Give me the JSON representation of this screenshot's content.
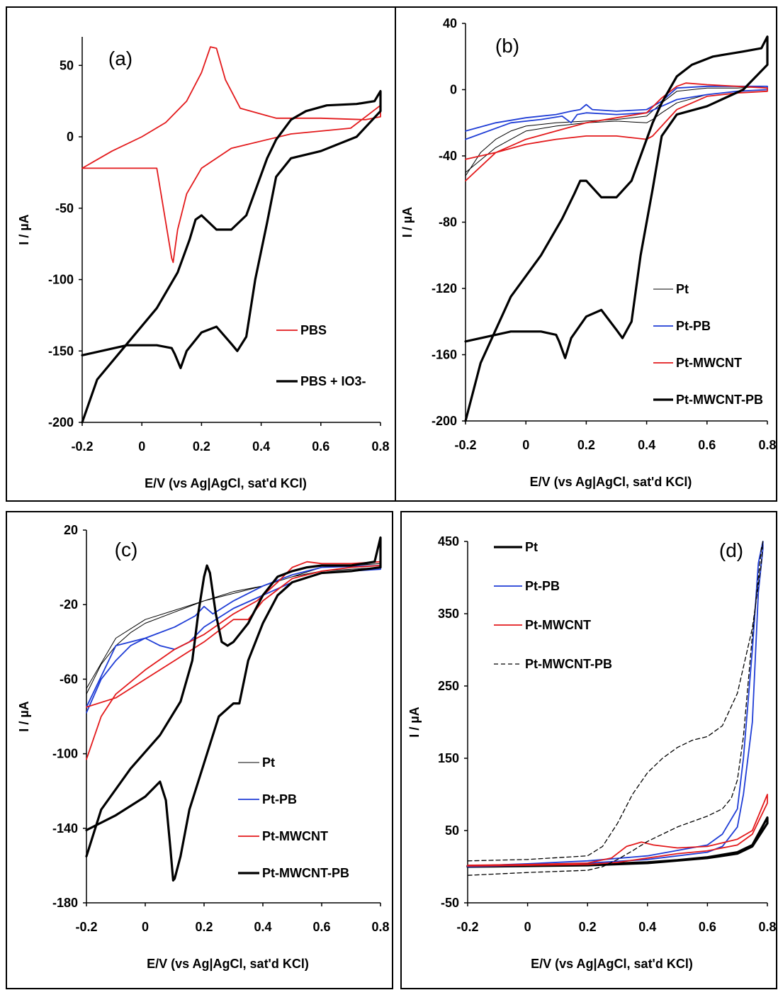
{
  "chart_data": [
    {
      "panel": "(a)",
      "type": "line",
      "xlabel": "E/V (vs Ag|AgCl, sat'd KCl)",
      "ylabel": "I / µA",
      "xlim": [
        -0.2,
        0.8
      ],
      "ylim": [
        -200,
        70
      ],
      "xticks": [
        "-0.2",
        "0",
        "0.2",
        "0.4",
        "0.6",
        "0.8"
      ],
      "yticks": [
        "50",
        "0",
        "-50",
        "-100",
        "-150",
        "-200"
      ],
      "ytick_values": [
        50,
        0,
        -50,
        -100,
        -150,
        -200
      ],
      "xtick_values": [
        -0.2,
        0,
        0.2,
        0.4,
        0.6,
        0.8
      ],
      "legend": "right-middle",
      "series": [
        {
          "name": "PBS",
          "color": "#e31a1c",
          "width": 1.8,
          "dash": "",
          "x": [
            -0.2,
            -0.1,
            0,
            0.08,
            0.15,
            0.2,
            0.23,
            0.25,
            0.28,
            0.33,
            0.45,
            0.6,
            0.75,
            0.8,
            0.8,
            0.7,
            0.5,
            0.3,
            0.2,
            0.15,
            0.12,
            0.11,
            0.105,
            0.1,
            0.05,
            -0.1,
            -0.2
          ],
          "y": [
            -22,
            -10,
            0,
            10,
            25,
            45,
            63,
            62,
            40,
            20,
            13,
            13,
            12,
            14,
            22,
            6,
            2,
            -8,
            -22,
            -40,
            -65,
            -80,
            -88,
            -85,
            -22,
            -22,
            -22
          ]
        },
        {
          "name": "PBS + IO3-",
          "color": "#000000",
          "width": 3.2,
          "dash": "",
          "x": [
            -0.2,
            -0.15,
            -0.05,
            0.05,
            0.12,
            0.16,
            0.18,
            0.2,
            0.25,
            0.3,
            0.35,
            0.42,
            0.45,
            0.5,
            0.55,
            0.62,
            0.72,
            0.78,
            0.8,
            0.8,
            0.72,
            0.6,
            0.5,
            0.45,
            0.42,
            0.38,
            0.35,
            0.32,
            0.3,
            0.25,
            0.2,
            0.15,
            0.13,
            0.11,
            0.1,
            0.05,
            -0.05,
            -0.2
          ],
          "y": [
            -200,
            -170,
            -145,
            -120,
            -95,
            -72,
            -58,
            -55,
            -65,
            -65,
            -55,
            -15,
            -2,
            12,
            18,
            22,
            23,
            25,
            32,
            18,
            0,
            -10,
            -15,
            -28,
            -60,
            -100,
            -140,
            -150,
            -145,
            -133,
            -137,
            -150,
            -162,
            -152,
            -148,
            -146,
            -146,
            -153
          ]
        }
      ]
    },
    {
      "panel": "(b)",
      "type": "line",
      "xlabel": "E/V (vs Ag|AgCl, sat'd KCl)",
      "ylabel": "I / µA",
      "xlim": [
        -0.2,
        0.8
      ],
      "ylim": [
        -200,
        40
      ],
      "xticks": [
        "-0.2",
        "0",
        "0.2",
        "0.4",
        "0.6",
        "0.8"
      ],
      "yticks": [
        "40",
        "0",
        "-40",
        "-80",
        "-120",
        "-160",
        "-200"
      ],
      "ytick_values": [
        40,
        0,
        -40,
        -80,
        -120,
        -160,
        -200
      ],
      "xtick_values": [
        -0.2,
        0,
        0.2,
        0.4,
        0.6,
        0.8
      ],
      "legend": "bottom-right",
      "series": [
        {
          "name": "Pt",
          "color": "#000000",
          "width": 1.0,
          "dash": "",
          "x": [
            -0.2,
            -0.15,
            -0.1,
            -0.05,
            0,
            0.1,
            0.2,
            0.3,
            0.4,
            0.45,
            0.5,
            0.6,
            0.7,
            0.8,
            0.8,
            0.7,
            0.6,
            0.5,
            0.45,
            0.42,
            0.4,
            0.3,
            0.2,
            0.1,
            0,
            -0.1,
            -0.2
          ],
          "y": [
            -52,
            -38,
            -30,
            -25,
            -22,
            -20,
            -19,
            -18,
            -16,
            -8,
            -1,
            1,
            1,
            2,
            0,
            -1,
            -3,
            -8,
            -14,
            -18,
            -20,
            -19,
            -20,
            -22,
            -25,
            -35,
            -50
          ]
        },
        {
          "name": "Pt-PB",
          "color": "#1f3dd6",
          "width": 1.8,
          "dash": "",
          "x": [
            -0.2,
            -0.1,
            0,
            0.1,
            0.15,
            0.18,
            0.2,
            0.22,
            0.3,
            0.4,
            0.45,
            0.5,
            0.6,
            0.7,
            0.8,
            0.8,
            0.7,
            0.6,
            0.5,
            0.45,
            0.4,
            0.3,
            0.2,
            0.17,
            0.15,
            0.12,
            0.05,
            -0.05,
            -0.2
          ],
          "y": [
            -25,
            -20,
            -17,
            -15,
            -13,
            -12,
            -9,
            -12,
            -13,
            -12,
            -7,
            1,
            2,
            2,
            2,
            0,
            -1,
            -3,
            -6,
            -10,
            -14,
            -15,
            -14,
            -15,
            -20,
            -16,
            -18,
            -20,
            -30
          ]
        },
        {
          "name": "Pt-MWCNT",
          "color": "#e31a1c",
          "width": 1.8,
          "dash": "",
          "x": [
            -0.2,
            -0.1,
            0,
            0.1,
            0.2,
            0.3,
            0.4,
            0.45,
            0.5,
            0.53,
            0.6,
            0.7,
            0.8,
            0.8,
            0.7,
            0.6,
            0.5,
            0.45,
            0.42,
            0.4,
            0.3,
            0.2,
            0.1,
            0,
            -0.1,
            -0.2
          ],
          "y": [
            -55,
            -38,
            -30,
            -25,
            -20,
            -17,
            -14,
            -5,
            2,
            4,
            3,
            2,
            1,
            -1,
            -2,
            -4,
            -12,
            -22,
            -28,
            -30,
            -28,
            -28,
            -30,
            -33,
            -38,
            -42
          ]
        },
        {
          "name": "Pt-MWCNT-PB",
          "color": "#000000",
          "width": 3.2,
          "dash": "",
          "x": [
            -0.2,
            -0.15,
            -0.05,
            0.05,
            0.12,
            0.16,
            0.18,
            0.2,
            0.25,
            0.3,
            0.35,
            0.42,
            0.45,
            0.5,
            0.55,
            0.62,
            0.72,
            0.78,
            0.8,
            0.8,
            0.72,
            0.6,
            0.5,
            0.45,
            0.42,
            0.38,
            0.35,
            0.32,
            0.3,
            0.25,
            0.2,
            0.15,
            0.13,
            0.11,
            0.1,
            0.05,
            -0.05,
            -0.2
          ],
          "y": [
            -200,
            -165,
            -125,
            -100,
            -78,
            -63,
            -55,
            -55,
            -65,
            -65,
            -55,
            -20,
            -8,
            8,
            15,
            20,
            23,
            25,
            32,
            15,
            0,
            -10,
            -15,
            -28,
            -60,
            -100,
            -140,
            -150,
            -145,
            -133,
            -137,
            -150,
            -162,
            -152,
            -148,
            -146,
            -146,
            -152
          ]
        }
      ]
    },
    {
      "panel": "(c)",
      "type": "line",
      "xlabel": "E/V (vs Ag|AgCl, sat'd KCl)",
      "ylabel": "I / µA",
      "xlim": [
        -0.2,
        0.8
      ],
      "ylim": [
        -180,
        20
      ],
      "xticks": [
        "-0.2",
        "0",
        "0.2",
        "0.4",
        "0.6",
        "0.8"
      ],
      "yticks": [
        "20",
        "-20",
        "-60",
        "-100",
        "-140",
        "-180"
      ],
      "ytick_values": [
        20,
        -20,
        -60,
        -100,
        -140,
        -180
      ],
      "xtick_values": [
        -0.2,
        0,
        0.2,
        0.4,
        0.6,
        0.8
      ],
      "legend": "bottom-right",
      "series": [
        {
          "name": "Pt",
          "color": "#000000",
          "width": 1.0,
          "dash": "",
          "x": [
            -0.2,
            -0.15,
            -0.1,
            -0.05,
            0,
            0.1,
            0.2,
            0.3,
            0.4,
            0.5,
            0.6,
            0.7,
            0.8,
            0.8,
            0.7,
            0.6,
            0.5,
            0.4,
            0.3,
            0.2,
            0.1,
            0,
            -0.1,
            -0.2
          ],
          "y": [
            -68,
            -52,
            -42,
            -35,
            -30,
            -24,
            -18,
            -13,
            -10,
            -5,
            0,
            1,
            2,
            0,
            -1,
            -2,
            -5,
            -10,
            -14,
            -18,
            -23,
            -28,
            -38,
            -65
          ]
        },
        {
          "name": "Pt-PB",
          "color": "#1f3dd6",
          "width": 1.8,
          "dash": "",
          "x": [
            -0.2,
            -0.15,
            -0.1,
            -0.05,
            0,
            0.1,
            0.17,
            0.2,
            0.23,
            0.3,
            0.4,
            0.5,
            0.6,
            0.8,
            0.8,
            0.6,
            0.5,
            0.4,
            0.3,
            0.2,
            0.15,
            0.1,
            0.05,
            0,
            -0.1,
            -0.2
          ],
          "y": [
            -78,
            -60,
            -50,
            -42,
            -38,
            -32,
            -26,
            -21,
            -25,
            -18,
            -10,
            -4,
            0,
            1,
            -1,
            -3,
            -8,
            -15,
            -22,
            -32,
            -40,
            -44,
            -42,
            -38,
            -42,
            -75
          ]
        },
        {
          "name": "Pt-MWCNT",
          "color": "#e31a1c",
          "width": 1.8,
          "dash": "",
          "x": [
            -0.2,
            -0.15,
            -0.1,
            0,
            0.1,
            0.2,
            0.3,
            0.38,
            0.45,
            0.5,
            0.55,
            0.6,
            0.7,
            0.8,
            0.8,
            0.7,
            0.6,
            0.5,
            0.4,
            0.35,
            0.3,
            0.2,
            0.1,
            0,
            -0.1,
            -0.2
          ],
          "y": [
            -103,
            -80,
            -68,
            -55,
            -44,
            -36,
            -25,
            -18,
            -8,
            0,
            3,
            2,
            2,
            3,
            1,
            0,
            -2,
            -6,
            -18,
            -28,
            -28,
            -40,
            -50,
            -60,
            -70,
            -75
          ]
        },
        {
          "name": "Pt-MWCNT-PB",
          "color": "#000000",
          "width": 3.2,
          "dash": "",
          "x": [
            -0.2,
            -0.15,
            -0.05,
            0.05,
            0.12,
            0.16,
            0.18,
            0.2,
            0.21,
            0.22,
            0.24,
            0.26,
            0.28,
            0.3,
            0.35,
            0.4,
            0.45,
            0.5,
            0.55,
            0.6,
            0.7,
            0.78,
            0.8,
            0.8,
            0.7,
            0.6,
            0.5,
            0.45,
            0.4,
            0.35,
            0.32,
            0.3,
            0.25,
            0.2,
            0.15,
            0.12,
            0.1,
            0.095,
            0.085,
            0.07,
            0.05,
            0.0,
            -0.1,
            -0.2
          ],
          "y": [
            -155,
            -130,
            -108,
            -90,
            -72,
            -50,
            -25,
            -5,
            1,
            -3,
            -25,
            -40,
            -42,
            -40,
            -30,
            -15,
            -5,
            -2,
            0,
            1,
            1,
            3,
            16,
            0,
            -2,
            -3,
            -8,
            -15,
            -30,
            -50,
            -73,
            -73,
            -80,
            -105,
            -130,
            -155,
            -167,
            -168,
            -150,
            -125,
            -115,
            -123,
            -133,
            -141
          ]
        }
      ]
    },
    {
      "panel": "(d)",
      "type": "line",
      "xlabel": "E/V (vs Ag|AgCl, sat'd KCl)",
      "ylabel": "I / µA",
      "xlim": [
        -0.2,
        0.8
      ],
      "ylim": [
        -50,
        450
      ],
      "xticks": [
        "-0.2",
        "0",
        "0.2",
        "0.4",
        "0.6",
        "0.8"
      ],
      "yticks": [
        "450",
        "350",
        "250",
        "150",
        "50",
        "-50"
      ],
      "ytick_values": [
        450,
        350,
        250,
        150,
        50,
        -50
      ],
      "xtick_values": [
        -0.2,
        0,
        0.2,
        0.4,
        0.6,
        0.8
      ],
      "legend": "top-left",
      "series": [
        {
          "name": "Pt",
          "color": "#000000",
          "width": 3.2,
          "dash": "",
          "x": [
            -0.2,
            0,
            0.2,
            0.4,
            0.5,
            0.6,
            0.7,
            0.75,
            0.8,
            0.8,
            0.75,
            0.7,
            0.6,
            0.4,
            0.2,
            0,
            -0.2
          ],
          "y": [
            1,
            2,
            3,
            6,
            9,
            13,
            20,
            30,
            68,
            60,
            28,
            18,
            12,
            5,
            2,
            1,
            0
          ]
        },
        {
          "name": "Pt-PB",
          "color": "#1f3dd6",
          "width": 1.8,
          "dash": "",
          "x": [
            -0.2,
            0,
            0.2,
            0.4,
            0.6,
            0.65,
            0.7,
            0.72,
            0.75,
            0.77,
            0.785,
            0.785,
            0.77,
            0.75,
            0.72,
            0.7,
            0.65,
            0.6,
            0.4,
            0.2,
            0,
            -0.2
          ],
          "y": [
            1,
            4,
            8,
            15,
            30,
            45,
            80,
            150,
            300,
            420,
            450,
            440,
            380,
            200,
            100,
            55,
            28,
            20,
            10,
            5,
            2,
            0
          ]
        },
        {
          "name": "Pt-MWCNT",
          "color": "#e31a1c",
          "width": 1.8,
          "dash": "",
          "x": [
            -0.2,
            0,
            0.2,
            0.28,
            0.33,
            0.38,
            0.42,
            0.5,
            0.6,
            0.7,
            0.75,
            0.8,
            0.8,
            0.75,
            0.7,
            0.6,
            0.5,
            0.4,
            0.3,
            0.2,
            0,
            -0.2
          ],
          "y": [
            2,
            3,
            5,
            12,
            28,
            34,
            30,
            26,
            28,
            38,
            50,
            100,
            88,
            45,
            30,
            22,
            18,
            12,
            6,
            3,
            2,
            1
          ]
        },
        {
          "name": "Pt-MWCNT-PB",
          "color": "#000000",
          "width": 1.3,
          "dash": "6,4",
          "x": [
            -0.2,
            0,
            0.2,
            0.25,
            0.3,
            0.35,
            0.4,
            0.45,
            0.5,
            0.55,
            0.6,
            0.65,
            0.7,
            0.75,
            0.78,
            0.785,
            0.78,
            0.75,
            0.72,
            0.7,
            0.68,
            0.65,
            0.6,
            0.5,
            0.4,
            0.35,
            0.3,
            0.25,
            0.2,
            0,
            -0.2
          ],
          "y": [
            8,
            10,
            15,
            28,
            60,
            100,
            130,
            150,
            165,
            175,
            180,
            195,
            240,
            330,
            420,
            450,
            440,
            320,
            180,
            120,
            95,
            80,
            70,
            55,
            35,
            22,
            10,
            0,
            -5,
            -8,
            -12
          ]
        }
      ]
    }
  ]
}
